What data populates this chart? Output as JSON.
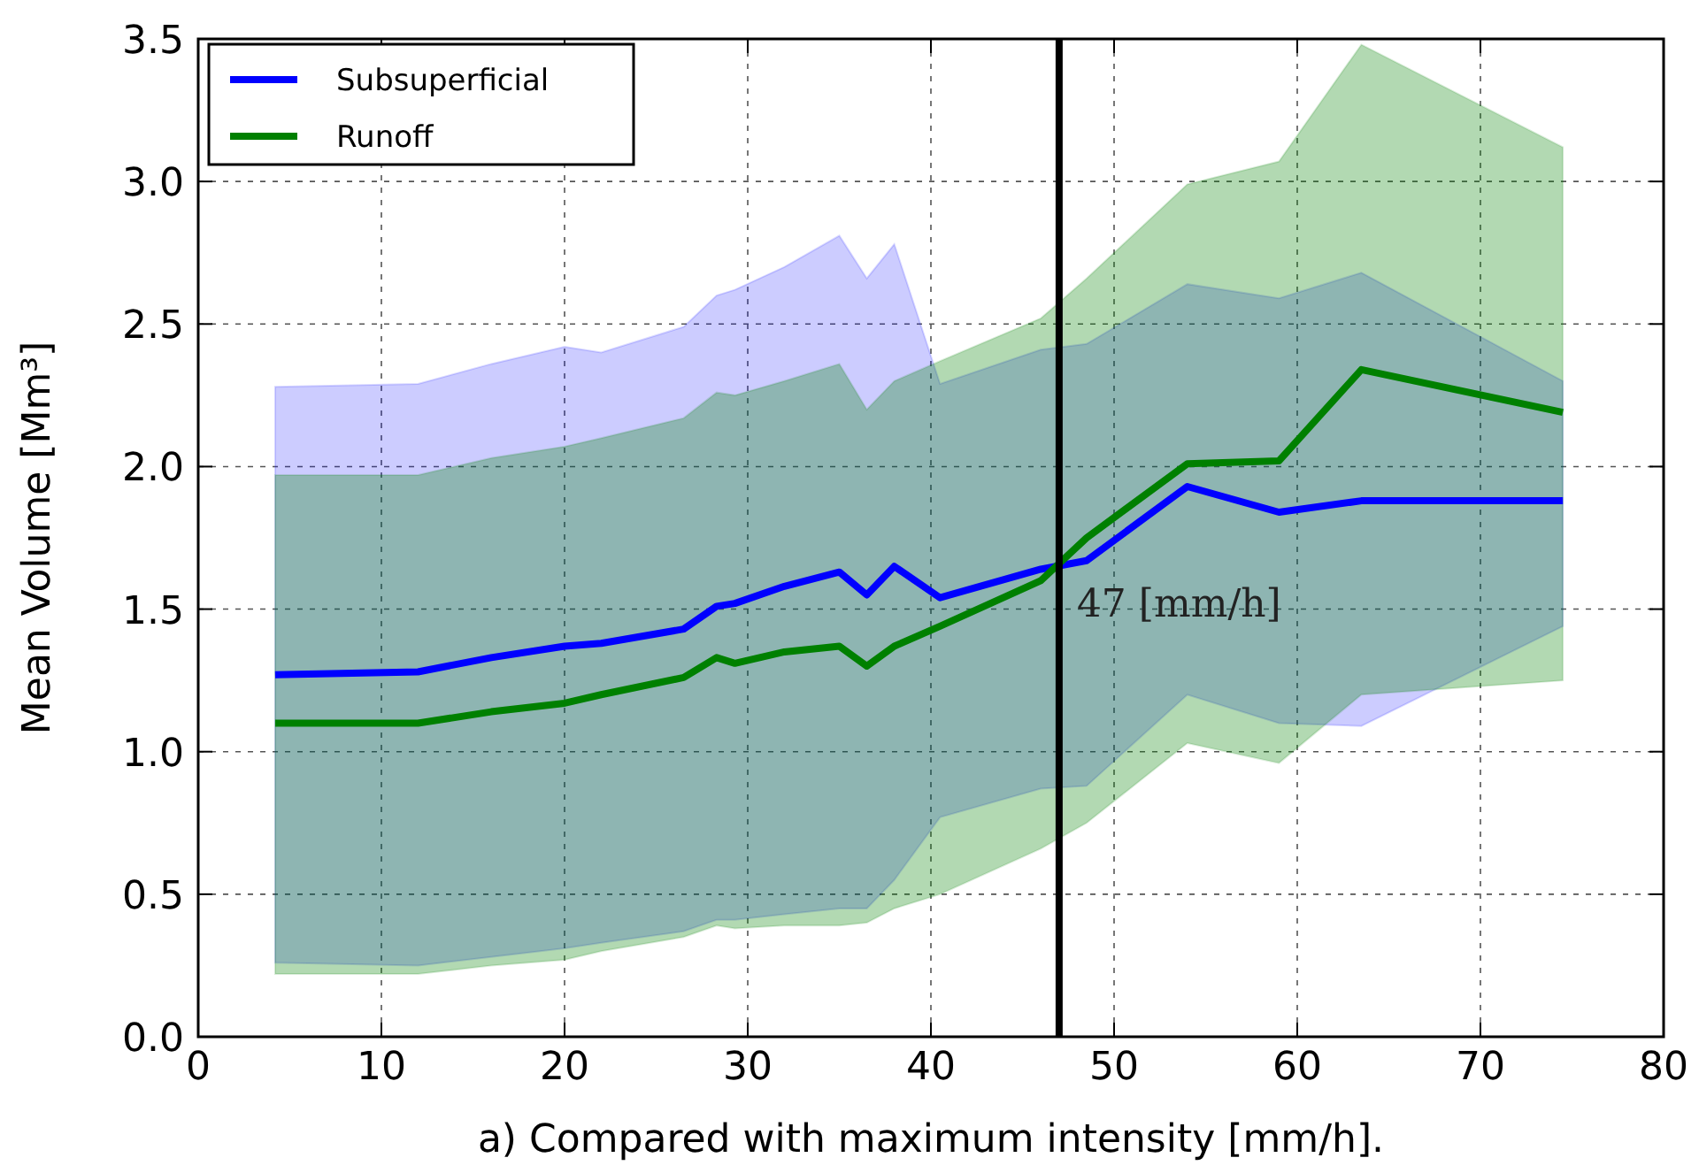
{
  "chart_data": {
    "type": "line",
    "xlabel": "a) Compared with maximum intensity [mm/h].",
    "ylabel": "Mean Volume [Mm³]",
    "x": [
      4.2,
      12,
      16,
      20,
      22,
      26.5,
      28.3,
      29.3,
      32,
      35,
      36.5,
      38,
      40.5,
      46,
      48.5,
      54,
      59,
      63.5,
      74.5
    ],
    "series": [
      {
        "name": "Subsuperficial",
        "color": "#0000ff",
        "values": [
          1.27,
          1.28,
          1.33,
          1.37,
          1.38,
          1.43,
          1.51,
          1.52,
          1.58,
          1.63,
          1.55,
          1.65,
          1.54,
          1.64,
          1.67,
          1.93,
          1.84,
          1.88,
          1.88
        ],
        "lower": [
          0.26,
          0.25,
          0.28,
          0.31,
          0.33,
          0.37,
          0.41,
          0.41,
          0.43,
          0.45,
          0.45,
          0.55,
          0.77,
          0.87,
          0.88,
          1.2,
          1.1,
          1.09,
          1.44
        ],
        "upper": [
          2.28,
          2.29,
          2.36,
          2.42,
          2.4,
          2.49,
          2.6,
          2.62,
          2.7,
          2.81,
          2.66,
          2.78,
          2.29,
          2.41,
          2.43,
          2.64,
          2.59,
          2.68,
          2.3
        ]
      },
      {
        "name": "Runoff",
        "color": "#008000",
        "values": [
          1.1,
          1.1,
          1.14,
          1.17,
          1.2,
          1.26,
          1.33,
          1.31,
          1.35,
          1.37,
          1.3,
          1.37,
          1.44,
          1.6,
          1.75,
          2.01,
          2.02,
          2.34,
          2.19
        ],
        "lower": [
          0.22,
          0.22,
          0.25,
          0.27,
          0.3,
          0.35,
          0.39,
          0.38,
          0.39,
          0.39,
          0.4,
          0.45,
          0.5,
          0.66,
          0.75,
          1.03,
          0.96,
          1.2,
          1.25
        ],
        "upper": [
          1.97,
          1.97,
          2.03,
          2.07,
          2.1,
          2.17,
          2.26,
          2.25,
          2.3,
          2.36,
          2.2,
          2.3,
          2.37,
          2.52,
          2.66,
          2.99,
          3.07,
          3.48,
          3.12
        ]
      }
    ],
    "xlim": [
      0,
      80
    ],
    "xticks": [
      0,
      10,
      20,
      30,
      40,
      50,
      60,
      70,
      80
    ],
    "ylim": [
      0,
      3.5
    ],
    "yticks": [
      {
        "value": 0,
        "label": "0.0"
      },
      {
        "value": 0.5,
        "label": "0.5"
      },
      {
        "value": 1,
        "label": "1.0"
      },
      {
        "value": 1.5,
        "label": "1.5"
      },
      {
        "value": 2,
        "label": "2.0"
      },
      {
        "value": 2.5,
        "label": "2.5"
      },
      {
        "value": 3,
        "label": "3.0"
      },
      {
        "value": 3.5,
        "label": "3.5"
      }
    ],
    "ref_lines": [
      {
        "axis": "x",
        "value": 47,
        "label": "47 [mm/h]",
        "color": "#000000"
      }
    ],
    "grid": true,
    "legend": "top left",
    "line_style": "solid",
    "marker": "none"
  }
}
